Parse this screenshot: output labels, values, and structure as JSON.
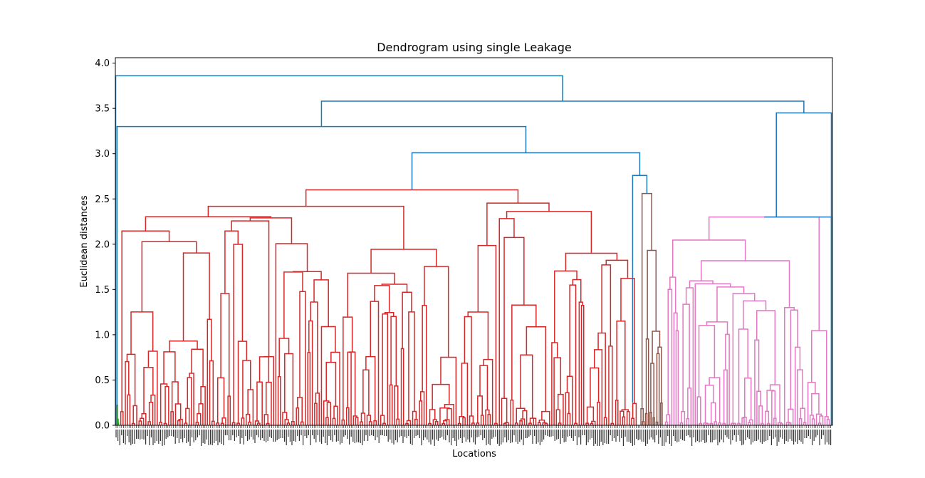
{
  "chart_data": {
    "type": "dendrogram",
    "title": "Dendrogram using single Leakage",
    "xlabel": "Locations",
    "ylabel": "Euclidean distances",
    "ylim": [
      0,
      4.06
    ],
    "yticks": [
      0.0,
      0.5,
      1.0,
      1.5,
      2.0,
      2.5,
      3.0,
      3.5,
      4.0
    ],
    "ytick_labels": [
      "0.0",
      "0.5",
      "1.0",
      "1.5",
      "2.0",
      "2.5",
      "3.0",
      "3.5",
      "4.0"
    ],
    "grid": false,
    "colors": {
      "link": "#1f77b4",
      "cluster_green": "#2ca02c",
      "cluster_red": "#d62728",
      "cluster_brown": "#8c564b",
      "cluster_pink": "#e377c2"
    },
    "top_merges": [
      {
        "height": 3.86,
        "color": "link"
      },
      {
        "height": 3.58,
        "color": "link"
      },
      {
        "height": 3.45,
        "color": "link"
      },
      {
        "height": 3.3,
        "color": "link"
      },
      {
        "height": 3.01,
        "color": "link"
      },
      {
        "height": 2.76,
        "color": "link"
      },
      {
        "height": 2.3,
        "color": "link"
      }
    ],
    "clusters": [
      {
        "color": "cluster_green",
        "max_height": 0.22
      },
      {
        "color": "cluster_red",
        "max_height": 2.6
      },
      {
        "color": "cluster_brown",
        "max_height": 2.56
      },
      {
        "color": "cluster_pink",
        "max_height": 2.3
      }
    ]
  }
}
